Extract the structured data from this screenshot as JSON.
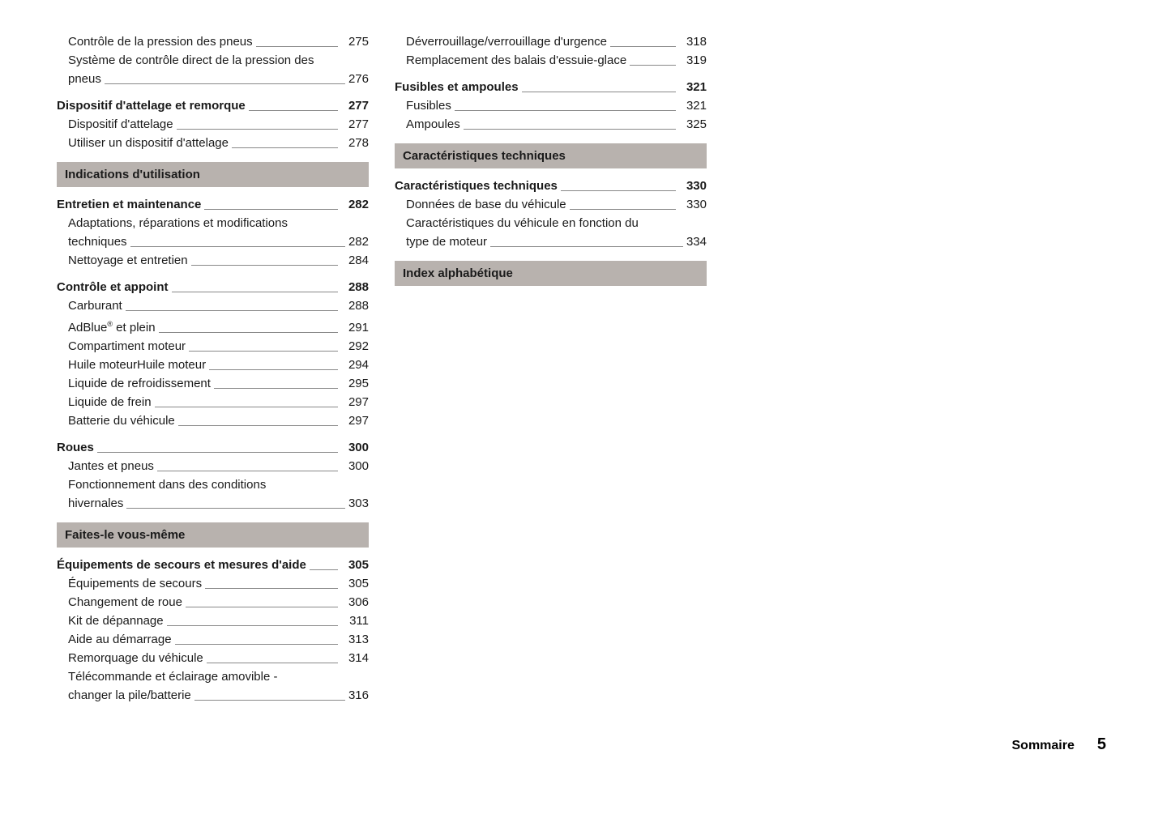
{
  "colors": {
    "background": "#ffffff",
    "text": "#1a1a1a",
    "headingBar": "#b8b2ae",
    "leader": "#888888"
  },
  "typography": {
    "body_fontsize": 15,
    "line_height": 23,
    "heading_fontsize": 15
  },
  "leftColumn": {
    "preItems": [
      {
        "label": "Contrôle de la pression des pneus",
        "page": "275",
        "bold": false,
        "indent": true
      }
    ],
    "preWrap": {
      "line1": "Système de contrôle direct de la pression des",
      "line2": "pneus",
      "page": "276",
      "indent": true
    },
    "sec1": {
      "header": {
        "label": "Dispositif d'attelage et remorque",
        "page": "277"
      },
      "items": [
        {
          "label": "Dispositif d'attelage",
          "page": "277"
        },
        {
          "label": "Utiliser un dispositif d'attelage",
          "page": "278"
        }
      ]
    },
    "heading1": "Indications d'utilisation",
    "sec2": {
      "header": {
        "label": "Entretien et maintenance",
        "page": "282"
      },
      "wrap": {
        "line1": "Adaptations, réparations et modifications",
        "line2": "techniques",
        "page": "282"
      },
      "items": [
        {
          "label": "Nettoyage et entretien",
          "page": "284"
        }
      ]
    },
    "sec3": {
      "header": {
        "label": "Contrôle et appoint",
        "page": "288"
      },
      "items": [
        {
          "label": "Carburant",
          "page": "288"
        },
        {
          "labelHtml": "AdBlue<span class='sup'>®</span> et plein",
          "page": "291"
        },
        {
          "label": "Compartiment moteur",
          "page": "292"
        },
        {
          "label": "Huile moteurHuile moteur",
          "page": "294"
        },
        {
          "label": "Liquide de refroidissement",
          "page": "295"
        },
        {
          "label": "Liquide de frein",
          "page": "297"
        },
        {
          "label": "Batterie du véhicule",
          "page": "297"
        }
      ]
    },
    "sec4": {
      "header": {
        "label": "Roues",
        "page": "300"
      },
      "items": [
        {
          "label": "Jantes et pneus",
          "page": "300"
        }
      ],
      "wrap": {
        "line1": "Fonctionnement dans des conditions",
        "line2": "hivernales",
        "page": "303"
      }
    },
    "heading2": "Faites-le vous-même",
    "sec5": {
      "header": {
        "label": "Équipements de secours et mesures d'aide",
        "page": "305"
      },
      "items": [
        {
          "label": "Équipements de secours",
          "page": "305"
        },
        {
          "label": "Changement de roue",
          "page": "306"
        },
        {
          "label": "Kit de dépannage",
          "page": "311"
        },
        {
          "label": "Aide au démarrage",
          "page": "313"
        },
        {
          "label": "Remorquage du véhicule",
          "page": "314"
        }
      ],
      "wrap": {
        "line1": "Télécommande et éclairage amovible -",
        "line2": "changer la pile/batterie",
        "page": "316"
      }
    }
  },
  "rightColumn": {
    "preItems": [
      {
        "label": "Déverrouillage/verrouillage d'urgence",
        "page": "318",
        "indent": true
      },
      {
        "label": "Remplacement des balais d'essuie-glace",
        "page": "319",
        "indent": true
      }
    ],
    "sec1": {
      "header": {
        "label": "Fusibles et ampoules",
        "page": "321"
      },
      "items": [
        {
          "label": "Fusibles",
          "page": "321"
        },
        {
          "label": "Ampoules",
          "page": "325"
        }
      ]
    },
    "heading1": "Caractéristiques techniques",
    "sec2": {
      "header": {
        "label": "Caractéristiques techniques",
        "page": "330"
      },
      "items": [
        {
          "label": "Données de base du véhicule",
          "page": "330"
        }
      ],
      "wrap": {
        "line1": "Caractéristiques du véhicule en fonction du",
        "line2": "type de moteur",
        "page": "334"
      }
    },
    "heading2": "Index alphabétique"
  },
  "footer": {
    "title": "Sommaire",
    "page": "5"
  }
}
